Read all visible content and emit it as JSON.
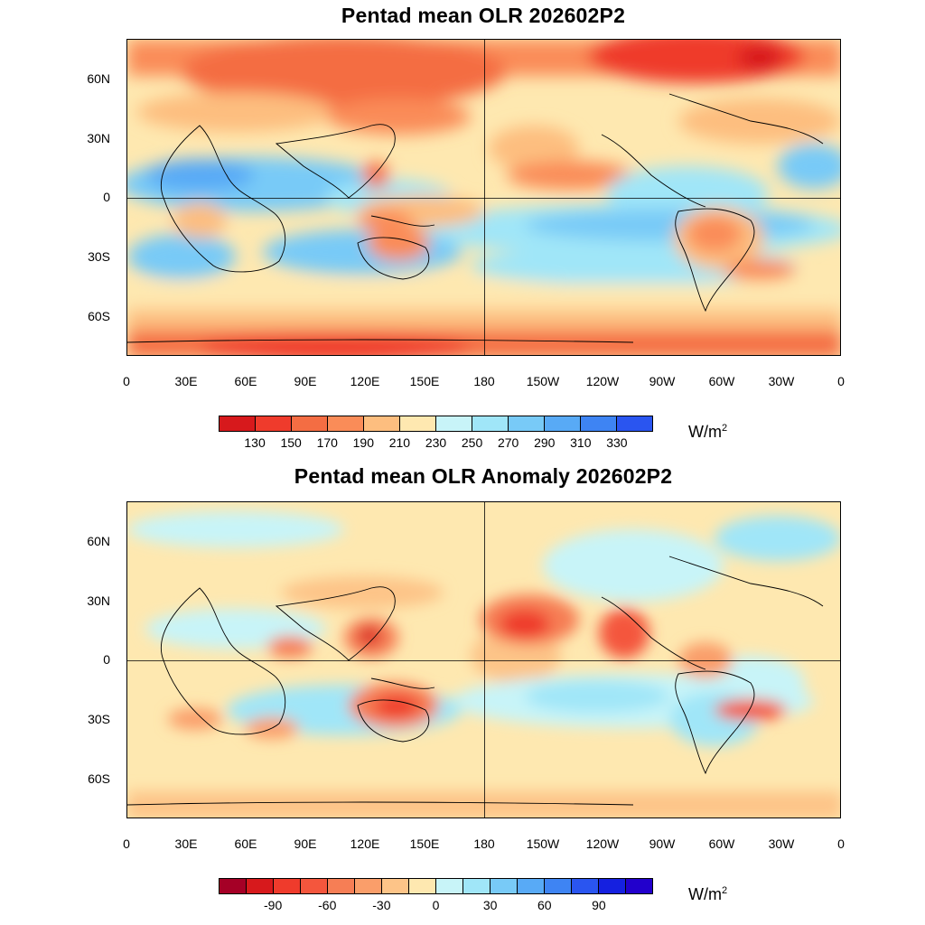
{
  "panels": [
    {
      "title": "Pentad mean OLR 202602P2",
      "lat_labels": [
        "60N",
        "30N",
        "0",
        "30S",
        "60S"
      ],
      "lon_labels": [
        "0",
        "30E",
        "60E",
        "90E",
        "120E",
        "150E",
        "180",
        "150W",
        "120W",
        "90W",
        "60W",
        "30W",
        "0"
      ],
      "colorbar": {
        "colors": [
          "#d7191c",
          "#ef3b2c",
          "#f46d43",
          "#fa8c58",
          "#fdbe7f",
          "#fee8b0",
          "#c8f4f8",
          "#a0e6f8",
          "#78caf7",
          "#58aaf6",
          "#3e84f3",
          "#2a55f0"
        ],
        "labels": [
          "130",
          "150",
          "170",
          "190",
          "210",
          "230",
          "250",
          "270",
          "290",
          "310",
          "330"
        ],
        "unit": "W/m",
        "unit_sup": "2"
      }
    },
    {
      "title": "Pentad mean OLR Anomaly 202602P2",
      "lat_labels": [
        "60N",
        "30N",
        "0",
        "30S",
        "60S"
      ],
      "lon_labels": [
        "0",
        "30E",
        "60E",
        "90E",
        "120E",
        "150E",
        "180",
        "150W",
        "120W",
        "90W",
        "60W",
        "30W",
        "0"
      ],
      "colorbar": {
        "colors": [
          "#a50026",
          "#d7191c",
          "#ef3b2c",
          "#f4563d",
          "#f67e55",
          "#fa9e6a",
          "#fdc488",
          "#fee8b0",
          "#c8f4f8",
          "#a0e6f8",
          "#78caf7",
          "#58aaf6",
          "#3e84f3",
          "#2a55f0",
          "#1520e0",
          "#2200cc"
        ],
        "labels": [
          "-90",
          "-60",
          "-30",
          "0",
          "30",
          "60",
          "90"
        ],
        "unit": "W/m",
        "unit_sup": "2"
      }
    }
  ]
}
